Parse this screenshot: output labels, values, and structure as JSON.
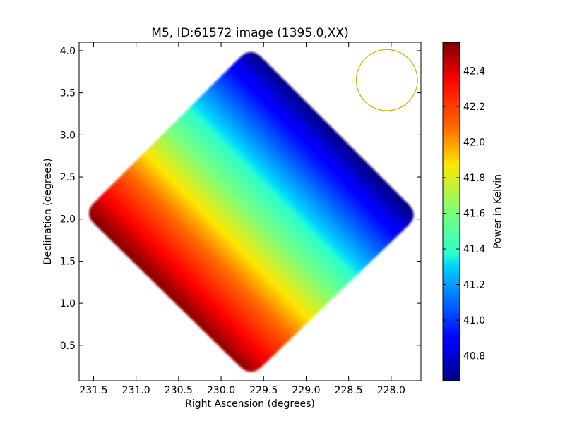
{
  "chart_data": {
    "type": "heatmap",
    "title": "M5, ID:61572 image (1395.0,XX)",
    "xlabel": "Right Ascension (degrees)",
    "ylabel": "Declination (degrees)",
    "xlim": [
      231.67,
      227.65
    ],
    "ylim": [
      0.08,
      4.1
    ],
    "x_ticks": [
      "231.5",
      "231.0",
      "230.5",
      "230.0",
      "229.5",
      "229.0",
      "228.5",
      "228.0"
    ],
    "y_ticks": [
      "0.5",
      "1.0",
      "1.5",
      "2.0",
      "2.5",
      "3.0",
      "3.5",
      "4.0"
    ],
    "colorbar": {
      "label": "Power in Kelvin",
      "range": [
        40.66,
        42.56
      ],
      "ticks": [
        "40.8",
        "41.0",
        "41.2",
        "41.4",
        "41.6",
        "41.8",
        "42.0",
        "42.2",
        "42.4"
      ],
      "colormap": "jet"
    },
    "footprint": {
      "shape": "rotated-square",
      "vertices_ra_dec": [
        [
          229.65,
          4.05
        ],
        [
          227.67,
          2.05
        ],
        [
          229.65,
          0.12
        ],
        [
          231.62,
          2.07
        ]
      ],
      "value_low_corner": "top-right (~40.7)",
      "value_high_corner": "bottom-left (~42.5)"
    },
    "beam": {
      "shape": "circle",
      "center_ra_dec": [
        228.05,
        3.65
      ],
      "radius_deg": 0.36,
      "color": "#c8b400"
    }
  }
}
